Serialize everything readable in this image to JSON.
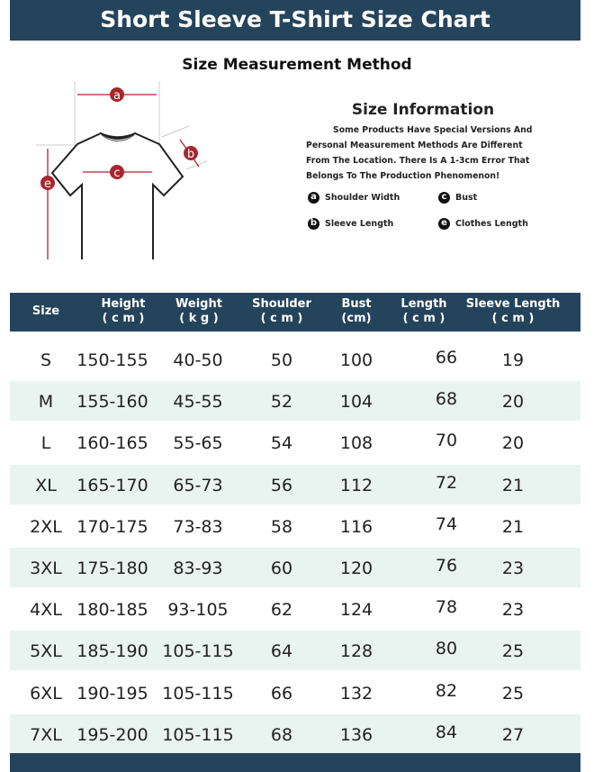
{
  "title": "Short Sleeve T-Shirt Size Chart",
  "method_title": "Size Measurement Method",
  "diagram_labels": [
    "a",
    "b",
    "c",
    "e"
  ],
  "info": {
    "title": "Size Information",
    "text": "Some Products Have Special Versions And Personal Measurement Methods Are Different From The Location. There Is A 1-3cm Error That Belongs To The Production Phenomenon!",
    "legend": [
      {
        "key": "a",
        "label": "Shoulder Width"
      },
      {
        "key": "c",
        "label": "Bust"
      },
      {
        "key": "b",
        "label": "Sleeve Length"
      },
      {
        "key": "e",
        "label": "Clothes Length"
      }
    ]
  },
  "colors": {
    "header": "#24445c",
    "row_shade": "#e9f4f1",
    "marker": "#a8262c"
  },
  "table": {
    "headers": [
      {
        "name": "Size",
        "unit": ""
      },
      {
        "name": "Height",
        "unit": "( c m )"
      },
      {
        "name": "Weight",
        "unit": "( k g )"
      },
      {
        "name": "Shoulder",
        "unit": "( c m )"
      },
      {
        "name": "Bust",
        "unit": "(cm)"
      },
      {
        "name": "Length",
        "unit": "( c m )"
      },
      {
        "name": "Sleeve Length",
        "unit": "( c m )"
      }
    ],
    "rows": [
      [
        "S",
        "150-155",
        "40-50",
        "50",
        "100",
        "66",
        "19"
      ],
      [
        "M",
        "155-160",
        "45-55",
        "52",
        "104",
        "68",
        "20"
      ],
      [
        "L",
        "160-165",
        "55-65",
        "54",
        "108",
        "70",
        "20"
      ],
      [
        "XL",
        "165-170",
        "65-73",
        "56",
        "112",
        "72",
        "21"
      ],
      [
        "2XL",
        "170-175",
        "73-83",
        "58",
        "116",
        "74",
        "21"
      ],
      [
        "3XL",
        "175-180",
        "83-93",
        "60",
        "120",
        "76",
        "23"
      ],
      [
        "4XL",
        "180-185",
        "93-105",
        "62",
        "124",
        "78",
        "23"
      ],
      [
        "5XL",
        "185-190",
        "105-115",
        "64",
        "128",
        "80",
        "25"
      ],
      [
        "6XL",
        "190-195",
        "105-115",
        "66",
        "132",
        "82",
        "25"
      ],
      [
        "7XL",
        "195-200",
        "105-115",
        "68",
        "136",
        "84",
        "27"
      ]
    ]
  }
}
